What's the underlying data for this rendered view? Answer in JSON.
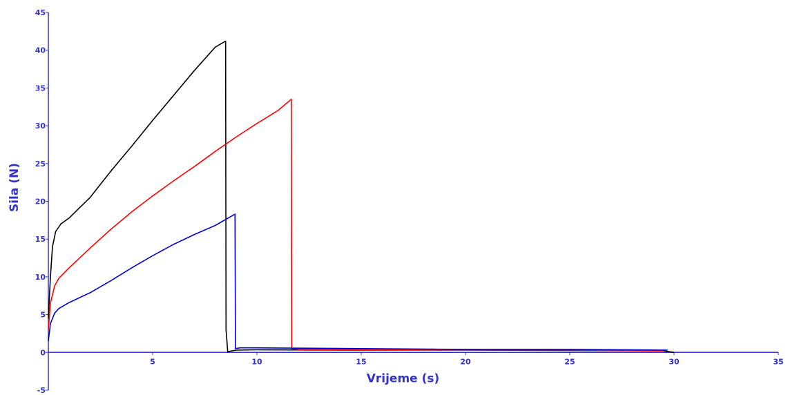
{
  "chart_data": {
    "type": "line",
    "title": "",
    "xlabel": "Vrijeme (s)",
    "ylabel": "Sila (N)",
    "xlim": [
      0,
      35
    ],
    "ylim": [
      -5,
      45
    ],
    "x_ticks": [
      "5",
      "10",
      "15",
      "20",
      "25",
      "30",
      "35"
    ],
    "y_ticks": [
      "-5",
      "0",
      "5",
      "10",
      "15",
      "20",
      "25",
      "30",
      "35",
      "40",
      "45"
    ],
    "x_tick_values": [
      5,
      10,
      15,
      20,
      25,
      30,
      35
    ],
    "y_tick_values": [
      -5,
      0,
      5,
      10,
      15,
      20,
      25,
      30,
      35,
      40,
      45
    ],
    "grid": false,
    "legend": "none",
    "colors": {
      "axis": "#3333cc",
      "axis_text": "#3333cc"
    },
    "series": [
      {
        "color": "#000000",
        "x": [
          0,
          0.1,
          0.2,
          0.35,
          0.6,
          1,
          2,
          3,
          4,
          5,
          6,
          7,
          8,
          8.5,
          8.52,
          8.6,
          9,
          10,
          15,
          20,
          25,
          29.5,
          30
        ],
        "y": [
          4.5,
          10,
          14,
          16,
          17,
          17.8,
          20.5,
          24,
          27.3,
          30.7,
          34,
          37.3,
          40.4,
          41.2,
          3,
          0.1,
          0.3,
          0.35,
          0.3,
          0.3,
          0.25,
          0.2,
          0
        ]
      },
      {
        "color": "#ff0000",
        "x": [
          0,
          0.1,
          0.3,
          0.5,
          1,
          2,
          3,
          4,
          5,
          6,
          7,
          8,
          9,
          10,
          11,
          11.65,
          11.67,
          12,
          15,
          20,
          25,
          29.5
        ],
        "y": [
          3,
          6.5,
          8.8,
          9.8,
          11.2,
          13.8,
          16.3,
          18.6,
          20.7,
          22.7,
          24.6,
          26.6,
          28.5,
          30.3,
          32,
          33.5,
          0.5,
          0.4,
          0.35,
          0.3,
          0.3,
          0.2
        ]
      },
      {
        "color": "#0000cc",
        "x": [
          0,
          0.1,
          0.3,
          0.5,
          1,
          2,
          3,
          4,
          5,
          6,
          7,
          8,
          8.95,
          8.97,
          9.2,
          10,
          15,
          20,
          25,
          29.7
        ],
        "y": [
          1.5,
          3.8,
          5.2,
          5.8,
          6.6,
          7.9,
          9.5,
          11.2,
          12.8,
          14.3,
          15.6,
          16.8,
          18.3,
          0.5,
          0.6,
          0.6,
          0.5,
          0.4,
          0.4,
          0.3
        ]
      }
    ]
  }
}
